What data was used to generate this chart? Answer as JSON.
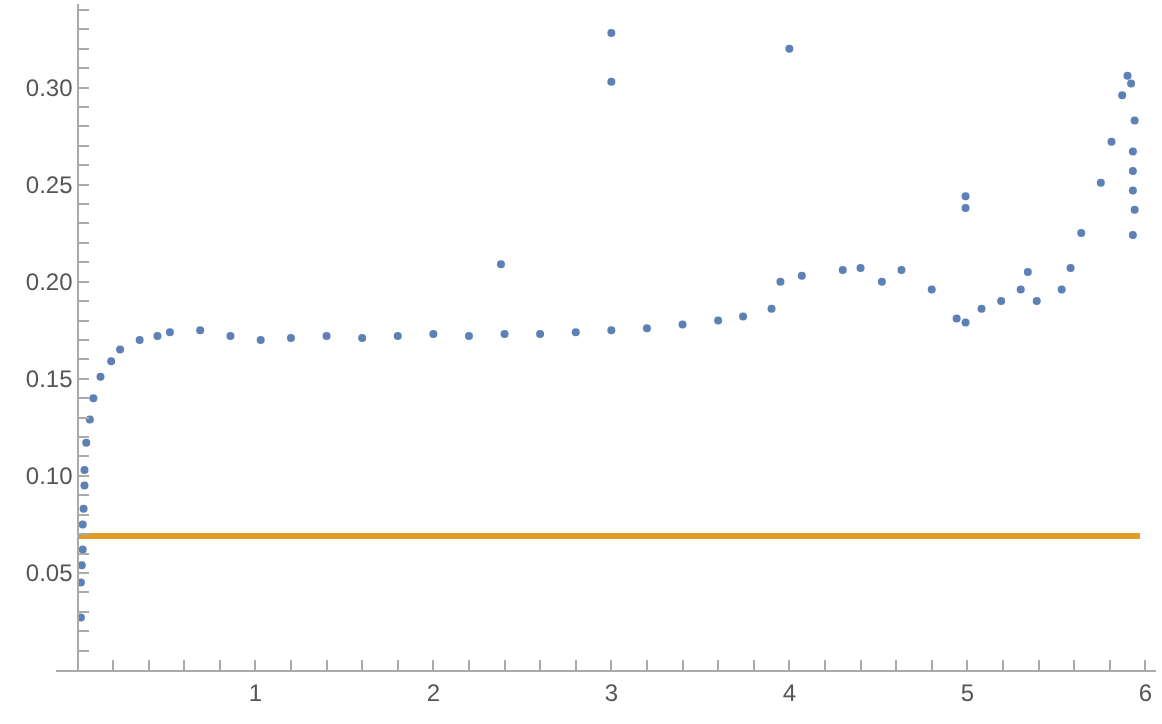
{
  "chart_data": {
    "type": "scatter",
    "xlim": [
      -0.12,
      6.06
    ],
    "ylim": [
      0,
      0.343
    ],
    "xticks": [
      {
        "value": 0.2,
        "label": null
      },
      {
        "value": 0.4,
        "label": null
      },
      {
        "value": 0.6,
        "label": null
      },
      {
        "value": 0.8,
        "label": null
      },
      1,
      {
        "value": 1.2,
        "label": null
      },
      {
        "value": 1.4,
        "label": null
      },
      {
        "value": 1.6,
        "label": null
      },
      {
        "value": 1.8,
        "label": null
      },
      2,
      {
        "value": 2.2,
        "label": null
      },
      {
        "value": 2.4,
        "label": null
      },
      {
        "value": 2.6,
        "label": null
      },
      {
        "value": 2.8,
        "label": null
      },
      3,
      {
        "value": 3.2,
        "label": null
      },
      {
        "value": 3.4,
        "label": null
      },
      {
        "value": 3.6,
        "label": null
      },
      {
        "value": 3.8,
        "label": null
      },
      4,
      {
        "value": 4.2,
        "label": null
      },
      {
        "value": 4.4,
        "label": null
      },
      {
        "value": 4.6,
        "label": null
      },
      {
        "value": 4.8,
        "label": null
      },
      5,
      {
        "value": 5.2,
        "label": null
      },
      {
        "value": 5.4,
        "label": null
      },
      {
        "value": 5.6,
        "label": null
      },
      {
        "value": 5.8,
        "label": null
      },
      6
    ],
    "yticks": [
      {
        "value": 0.01,
        "label": null
      },
      {
        "value": 0.02,
        "label": null
      },
      {
        "value": 0.03,
        "label": null
      },
      {
        "value": 0.04,
        "label": null
      },
      {
        "value": 0.05,
        "label": "0.05"
      },
      {
        "value": 0.06,
        "label": null
      },
      {
        "value": 0.07,
        "label": null
      },
      {
        "value": 0.08,
        "label": null
      },
      {
        "value": 0.09,
        "label": null
      },
      {
        "value": 0.1,
        "label": "0.10"
      },
      {
        "value": 0.11,
        "label": null
      },
      {
        "value": 0.12,
        "label": null
      },
      {
        "value": 0.13,
        "label": null
      },
      {
        "value": 0.14,
        "label": null
      },
      {
        "value": 0.15,
        "label": "0.15"
      },
      {
        "value": 0.16,
        "label": null
      },
      {
        "value": 0.17,
        "label": null
      },
      {
        "value": 0.18,
        "label": null
      },
      {
        "value": 0.19,
        "label": null
      },
      {
        "value": 0.2,
        "label": "0.20"
      },
      {
        "value": 0.21,
        "label": null
      },
      {
        "value": 0.22,
        "label": null
      },
      {
        "value": 0.23,
        "label": null
      },
      {
        "value": 0.24,
        "label": null
      },
      {
        "value": 0.25,
        "label": "0.25"
      },
      {
        "value": 0.26,
        "label": null
      },
      {
        "value": 0.27,
        "label": null
      },
      {
        "value": 0.28,
        "label": null
      },
      {
        "value": 0.29,
        "label": null
      },
      {
        "value": 0.3,
        "label": "0.30"
      },
      {
        "value": 0.31,
        "label": null
      },
      {
        "value": 0.32,
        "label": null
      },
      {
        "value": 0.33,
        "label": null
      },
      {
        "value": 0.34,
        "label": null
      }
    ],
    "series": [
      {
        "marker": "circle",
        "color": "#5e81b5",
        "x": [
          0.02,
          0.02,
          0.025,
          0.03,
          0.03,
          0.035,
          0.04,
          0.04,
          0.05,
          0.07,
          0.09,
          0.13,
          0.19,
          0.24,
          0.35,
          0.45,
          0.52,
          0.69,
          0.86,
          1.03,
          1.2,
          1.4,
          1.6,
          1.8,
          2.0,
          2.2,
          2.38,
          2.4,
          2.6,
          2.8,
          3.0,
          3.0,
          3.0,
          3.2,
          3.4,
          3.6,
          3.74,
          3.9,
          3.95,
          4.0,
          4.07,
          4.3,
          4.4,
          4.52,
          4.63,
          4.8,
          4.94,
          4.99,
          4.99,
          4.99,
          5.08,
          5.19,
          5.3,
          5.34,
          5.39,
          5.53,
          5.58,
          5.64,
          5.75,
          5.81,
          5.87,
          5.9,
          5.92,
          5.93,
          5.93,
          5.93,
          5.94,
          5.94,
          5.93
        ],
        "values": [
          0.027,
          0.045,
          0.054,
          0.062,
          0.075,
          0.083,
          0.095,
          0.103,
          0.117,
          0.129,
          0.14,
          0.151,
          0.159,
          0.165,
          0.17,
          0.172,
          0.174,
          0.175,
          0.172,
          0.17,
          0.171,
          0.172,
          0.171,
          0.172,
          0.173,
          0.172,
          0.209,
          0.173,
          0.173,
          0.174,
          0.328,
          0.303,
          0.175,
          0.176,
          0.178,
          0.18,
          0.182,
          0.186,
          0.2,
          0.32,
          0.203,
          0.206,
          0.207,
          0.2,
          0.206,
          0.196,
          0.181,
          0.244,
          0.238,
          0.179,
          0.186,
          0.19,
          0.196,
          0.205,
          0.19,
          0.196,
          0.207,
          0.225,
          0.251,
          0.272,
          0.296,
          0.306,
          0.302,
          0.267,
          0.257,
          0.247,
          0.283,
          0.237,
          0.224
        ]
      },
      {
        "type": "line",
        "color": "#e19c24",
        "x": [
          0,
          5.97
        ],
        "values": [
          0.069,
          0.069
        ]
      }
    ]
  }
}
